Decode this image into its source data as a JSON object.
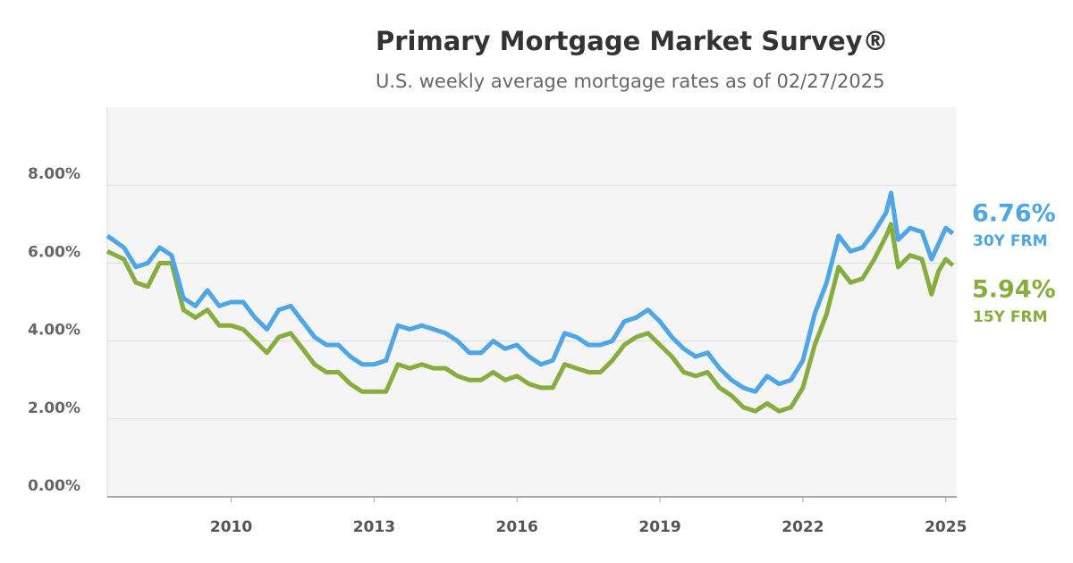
{
  "chart_data": {
    "type": "line",
    "title": "Primary Mortgage Market Survey®",
    "subtitle": "U.S. weekly average mortgage rates as of 02/27/2025",
    "x": [
      2007.4,
      2007.75,
      2008.0,
      2008.25,
      2008.5,
      2008.75,
      2009.0,
      2009.25,
      2009.5,
      2009.75,
      2010.0,
      2010.25,
      2010.5,
      2010.75,
      2011.0,
      2011.25,
      2011.5,
      2011.75,
      2012.0,
      2012.25,
      2012.5,
      2012.75,
      2013.0,
      2013.25,
      2013.5,
      2013.75,
      2014.0,
      2014.25,
      2014.5,
      2014.75,
      2015.0,
      2015.25,
      2015.5,
      2015.75,
      2016.0,
      2016.25,
      2016.5,
      2016.75,
      2017.0,
      2017.25,
      2017.5,
      2017.75,
      2018.0,
      2018.25,
      2018.5,
      2018.75,
      2019.0,
      2019.25,
      2019.5,
      2019.75,
      2020.0,
      2020.25,
      2020.5,
      2020.75,
      2021.0,
      2021.25,
      2021.5,
      2021.75,
      2022.0,
      2022.25,
      2022.5,
      2022.75,
      2023.0,
      2023.25,
      2023.5,
      2023.75,
      2023.85,
      2024.0,
      2024.25,
      2024.5,
      2024.7,
      2024.85,
      2025.0,
      2025.15
    ],
    "series": [
      {
        "name": "30Y FRM",
        "color": "#4ea6e6",
        "values": [
          6.7,
          6.4,
          5.9,
          6.0,
          6.4,
          6.2,
          5.1,
          4.9,
          5.3,
          4.9,
          5.0,
          5.0,
          4.6,
          4.3,
          4.8,
          4.9,
          4.5,
          4.1,
          3.9,
          3.9,
          3.6,
          3.4,
          3.4,
          3.5,
          4.4,
          4.3,
          4.4,
          4.3,
          4.2,
          4.0,
          3.7,
          3.7,
          4.0,
          3.8,
          3.9,
          3.6,
          3.4,
          3.5,
          4.2,
          4.1,
          3.9,
          3.9,
          4.0,
          4.5,
          4.6,
          4.8,
          4.5,
          4.1,
          3.8,
          3.6,
          3.7,
          3.3,
          3.0,
          2.8,
          2.7,
          3.1,
          2.9,
          3.0,
          3.5,
          4.7,
          5.5,
          6.7,
          6.3,
          6.4,
          6.8,
          7.3,
          7.8,
          6.6,
          6.9,
          6.8,
          6.1,
          6.5,
          6.9,
          6.76
        ],
        "value_labels": [
          null,
          null,
          null,
          null,
          null,
          null,
          null,
          null,
          null,
          null,
          null,
          null,
          null,
          null,
          null,
          null,
          null,
          null,
          null,
          null,
          null,
          null,
          null,
          null,
          null,
          null,
          null,
          null,
          null,
          null,
          null,
          null,
          null,
          null,
          null,
          null,
          null,
          null,
          null,
          null,
          null,
          null,
          null,
          null,
          null,
          null,
          null,
          null,
          null,
          null,
          null,
          null,
          null,
          null,
          null,
          null,
          null,
          null,
          null,
          null,
          null,
          null,
          null,
          null,
          null,
          null,
          null,
          null,
          null,
          null,
          null,
          null,
          null,
          "6.76%"
        ]
      },
      {
        "name": "15Y FRM",
        "color": "#86ad3d",
        "values": [
          6.3,
          6.1,
          5.5,
          5.4,
          6.0,
          6.0,
          4.8,
          4.6,
          4.8,
          4.4,
          4.4,
          4.3,
          4.0,
          3.7,
          4.1,
          4.2,
          3.8,
          3.4,
          3.2,
          3.2,
          2.9,
          2.7,
          2.7,
          2.7,
          3.4,
          3.3,
          3.4,
          3.3,
          3.3,
          3.1,
          3.0,
          3.0,
          3.2,
          3.0,
          3.1,
          2.9,
          2.8,
          2.8,
          3.4,
          3.3,
          3.2,
          3.2,
          3.5,
          3.9,
          4.1,
          4.2,
          3.9,
          3.6,
          3.2,
          3.1,
          3.2,
          2.8,
          2.6,
          2.3,
          2.2,
          2.4,
          2.2,
          2.3,
          2.8,
          3.9,
          4.7,
          5.9,
          5.5,
          5.6,
          6.1,
          6.7,
          7.0,
          5.9,
          6.2,
          6.1,
          5.2,
          5.8,
          6.1,
          5.94
        ],
        "value_labels": [
          null,
          null,
          null,
          null,
          null,
          null,
          null,
          null,
          null,
          null,
          null,
          null,
          null,
          null,
          null,
          null,
          null,
          null,
          null,
          null,
          null,
          null,
          null,
          null,
          null,
          null,
          null,
          null,
          null,
          null,
          null,
          null,
          null,
          null,
          null,
          null,
          null,
          null,
          null,
          null,
          null,
          null,
          null,
          null,
          null,
          null,
          null,
          null,
          null,
          null,
          null,
          null,
          null,
          null,
          null,
          null,
          null,
          null,
          null,
          null,
          null,
          null,
          null,
          null,
          null,
          null,
          null,
          null,
          null,
          null,
          null,
          null,
          null,
          "5.94%"
        ]
      }
    ],
    "xlim": [
      2007.4,
      2025.23
    ],
    "xticks": [
      2010,
      2013,
      2016,
      2019,
      2022,
      2025
    ],
    "ylim": [
      0,
      10
    ],
    "yticks": [
      {
        "value": 0,
        "label": "0.00%"
      },
      {
        "value": 2,
        "label": "2.00%"
      },
      {
        "value": 4,
        "label": "4.00%"
      },
      {
        "value": 6,
        "label": "6.00%"
      },
      {
        "value": 8,
        "label": "8.00%"
      }
    ],
    "grid": true
  }
}
